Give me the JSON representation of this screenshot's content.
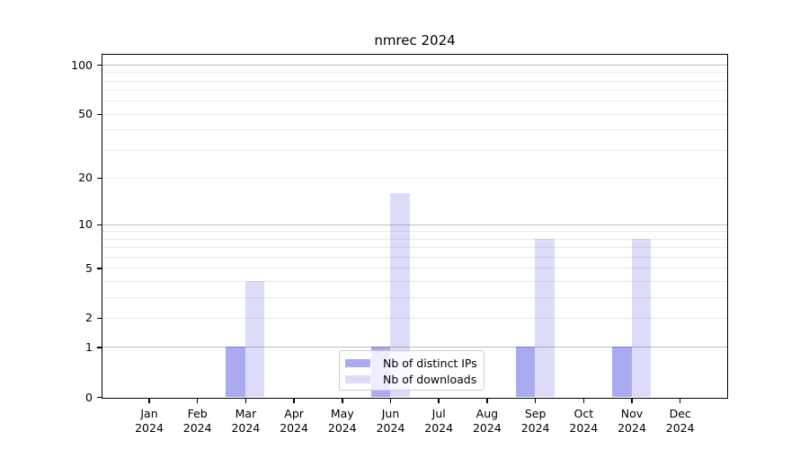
{
  "chart_data": {
    "type": "bar",
    "title": "nmrec 2024",
    "categories": [
      "Jan",
      "Feb",
      "Mar",
      "Apr",
      "May",
      "Jun",
      "Jul",
      "Aug",
      "Sep",
      "Oct",
      "Nov",
      "Dec"
    ],
    "x_year_label": "2024",
    "series": [
      {
        "name": "Nb of distinct IPs",
        "color": "#aaaaf0",
        "values": [
          0,
          0,
          1,
          0,
          0,
          1,
          0,
          0,
          1,
          0,
          1,
          0
        ]
      },
      {
        "name": "Nb of downloads",
        "color": "#dcdcfa",
        "values": [
          0,
          0,
          4,
          0,
          0,
          16,
          0,
          0,
          8,
          0,
          8,
          0
        ]
      }
    ],
    "yscale": "log1p",
    "ylim": [
      0,
      116
    ],
    "y_tick_labels": [
      "0",
      "1",
      "2",
      "5",
      "10",
      "20",
      "50",
      "100"
    ],
    "y_tick_values": [
      0,
      1,
      2,
      5,
      10,
      20,
      50,
      100
    ],
    "y_major_gridlines": [
      1,
      10,
      100
    ],
    "y_minor_gridlines": [
      2,
      3,
      4,
      5,
      6,
      7,
      8,
      9,
      20,
      30,
      40,
      50,
      60,
      70,
      80,
      90
    ],
    "grid": true,
    "legend_position": "lower center"
  },
  "colors": {
    "bar_distinct_ips": "#aaaaf0",
    "bar_downloads": "#dcdcfa",
    "axis": "#000000",
    "legend_border": "#cccccc"
  }
}
